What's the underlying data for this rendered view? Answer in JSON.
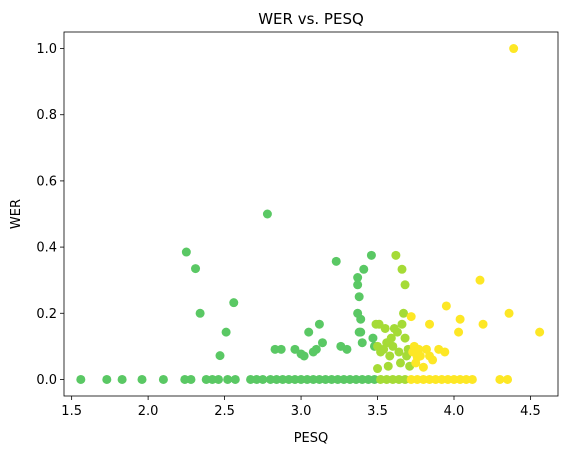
{
  "chart_data": {
    "type": "scatter",
    "title": "WER vs. PESQ",
    "xlabel": "PESQ",
    "ylabel": "WER",
    "xlim": [
      1.45,
      4.68
    ],
    "ylim": [
      -0.05,
      1.05
    ],
    "xticks": [
      1.5,
      2.0,
      2.5,
      3.0,
      3.5,
      4.0,
      4.5
    ],
    "xtick_labels": [
      "1.5",
      "2.0",
      "2.5",
      "3.0",
      "3.5",
      "4.0",
      "4.5"
    ],
    "yticks": [
      0.0,
      0.2,
      0.4,
      0.6,
      0.8,
      1.0
    ],
    "ytick_labels": [
      "0.0",
      "0.2",
      "0.4",
      "0.6",
      "0.8",
      "1.0"
    ],
    "grid": false,
    "colors": {
      "green": "#5ac864",
      "yellowgreen": "#a5db36",
      "yellow": "#fde725"
    },
    "points": [
      {
        "x": 1.56,
        "y": 0.0,
        "c": "green"
      },
      {
        "x": 1.73,
        "y": 0.0,
        "c": "green"
      },
      {
        "x": 1.83,
        "y": 0.0,
        "c": "green"
      },
      {
        "x": 1.96,
        "y": 0.0,
        "c": "green"
      },
      {
        "x": 2.1,
        "y": 0.0,
        "c": "green"
      },
      {
        "x": 2.24,
        "y": 0.0,
        "c": "green"
      },
      {
        "x": 2.28,
        "y": 0.0,
        "c": "green"
      },
      {
        "x": 2.38,
        "y": 0.0,
        "c": "green"
      },
      {
        "x": 2.42,
        "y": 0.0,
        "c": "green"
      },
      {
        "x": 2.46,
        "y": 0.0,
        "c": "green"
      },
      {
        "x": 2.52,
        "y": 0.0,
        "c": "green"
      },
      {
        "x": 2.57,
        "y": 0.0,
        "c": "green"
      },
      {
        "x": 2.67,
        "y": 0.0,
        "c": "green"
      },
      {
        "x": 2.71,
        "y": 0.0,
        "c": "green"
      },
      {
        "x": 2.75,
        "y": 0.0,
        "c": "green"
      },
      {
        "x": 2.8,
        "y": 0.0,
        "c": "green"
      },
      {
        "x": 2.84,
        "y": 0.0,
        "c": "green"
      },
      {
        "x": 2.88,
        "y": 0.0,
        "c": "green"
      },
      {
        "x": 2.92,
        "y": 0.0,
        "c": "green"
      },
      {
        "x": 2.96,
        "y": 0.0,
        "c": "green"
      },
      {
        "x": 3.0,
        "y": 0.0,
        "c": "green"
      },
      {
        "x": 3.04,
        "y": 0.0,
        "c": "green"
      },
      {
        "x": 3.08,
        "y": 0.0,
        "c": "green"
      },
      {
        "x": 3.12,
        "y": 0.0,
        "c": "green"
      },
      {
        "x": 3.16,
        "y": 0.0,
        "c": "green"
      },
      {
        "x": 3.2,
        "y": 0.0,
        "c": "green"
      },
      {
        "x": 3.24,
        "y": 0.0,
        "c": "green"
      },
      {
        "x": 3.28,
        "y": 0.0,
        "c": "green"
      },
      {
        "x": 3.32,
        "y": 0.0,
        "c": "green"
      },
      {
        "x": 3.36,
        "y": 0.0,
        "c": "green"
      },
      {
        "x": 3.4,
        "y": 0.0,
        "c": "green"
      },
      {
        "x": 3.44,
        "y": 0.0,
        "c": "green"
      },
      {
        "x": 3.48,
        "y": 0.0,
        "c": "green"
      },
      {
        "x": 3.52,
        "y": 0.0,
        "c": "yellowgreen"
      },
      {
        "x": 3.56,
        "y": 0.0,
        "c": "yellowgreen"
      },
      {
        "x": 3.6,
        "y": 0.0,
        "c": "yellowgreen"
      },
      {
        "x": 3.64,
        "y": 0.0,
        "c": "yellowgreen"
      },
      {
        "x": 3.68,
        "y": 0.0,
        "c": "yellowgreen"
      },
      {
        "x": 3.72,
        "y": 0.0,
        "c": "yellow"
      },
      {
        "x": 3.76,
        "y": 0.0,
        "c": "yellow"
      },
      {
        "x": 3.8,
        "y": 0.0,
        "c": "yellow"
      },
      {
        "x": 3.84,
        "y": 0.0,
        "c": "yellow"
      },
      {
        "x": 3.88,
        "y": 0.0,
        "c": "yellow"
      },
      {
        "x": 3.92,
        "y": 0.0,
        "c": "yellow"
      },
      {
        "x": 3.96,
        "y": 0.0,
        "c": "yellow"
      },
      {
        "x": 4.0,
        "y": 0.0,
        "c": "yellow"
      },
      {
        "x": 4.04,
        "y": 0.0,
        "c": "yellow"
      },
      {
        "x": 4.08,
        "y": 0.0,
        "c": "yellow"
      },
      {
        "x": 4.12,
        "y": 0.0,
        "c": "yellow"
      },
      {
        "x": 4.3,
        "y": 0.0,
        "c": "yellow"
      },
      {
        "x": 4.35,
        "y": 0.0,
        "c": "yellow"
      },
      {
        "x": 2.25,
        "y": 0.385,
        "c": "green"
      },
      {
        "x": 2.31,
        "y": 0.335,
        "c": "green"
      },
      {
        "x": 2.34,
        "y": 0.2,
        "c": "green"
      },
      {
        "x": 2.47,
        "y": 0.072,
        "c": "green"
      },
      {
        "x": 2.51,
        "y": 0.143,
        "c": "green"
      },
      {
        "x": 2.56,
        "y": 0.232,
        "c": "green"
      },
      {
        "x": 2.78,
        "y": 0.5,
        "c": "green"
      },
      {
        "x": 2.83,
        "y": 0.091,
        "c": "green"
      },
      {
        "x": 2.87,
        "y": 0.091,
        "c": "green"
      },
      {
        "x": 2.96,
        "y": 0.091,
        "c": "green"
      },
      {
        "x": 3.0,
        "y": 0.077,
        "c": "green"
      },
      {
        "x": 3.02,
        "y": 0.071,
        "c": "green"
      },
      {
        "x": 3.05,
        "y": 0.143,
        "c": "green"
      },
      {
        "x": 3.08,
        "y": 0.083,
        "c": "green"
      },
      {
        "x": 3.1,
        "y": 0.091,
        "c": "green"
      },
      {
        "x": 3.12,
        "y": 0.167,
        "c": "green"
      },
      {
        "x": 3.14,
        "y": 0.111,
        "c": "green"
      },
      {
        "x": 3.23,
        "y": 0.357,
        "c": "green"
      },
      {
        "x": 3.26,
        "y": 0.1,
        "c": "green"
      },
      {
        "x": 3.3,
        "y": 0.091,
        "c": "green"
      },
      {
        "x": 3.37,
        "y": 0.308,
        "c": "green"
      },
      {
        "x": 3.37,
        "y": 0.286,
        "c": "green"
      },
      {
        "x": 3.37,
        "y": 0.2,
        "c": "green"
      },
      {
        "x": 3.38,
        "y": 0.25,
        "c": "green"
      },
      {
        "x": 3.38,
        "y": 0.143,
        "c": "green"
      },
      {
        "x": 3.39,
        "y": 0.143,
        "c": "green"
      },
      {
        "x": 3.39,
        "y": 0.182,
        "c": "green"
      },
      {
        "x": 3.4,
        "y": 0.111,
        "c": "green"
      },
      {
        "x": 3.41,
        "y": 0.333,
        "c": "green"
      },
      {
        "x": 3.46,
        "y": 0.375,
        "c": "green"
      },
      {
        "x": 3.47,
        "y": 0.125,
        "c": "green"
      },
      {
        "x": 3.48,
        "y": 0.1,
        "c": "green"
      },
      {
        "x": 3.49,
        "y": 0.167,
        "c": "yellowgreen"
      },
      {
        "x": 3.5,
        "y": 0.1,
        "c": "yellowgreen"
      },
      {
        "x": 3.5,
        "y": 0.033,
        "c": "yellowgreen"
      },
      {
        "x": 3.51,
        "y": 0.167,
        "c": "yellowgreen"
      },
      {
        "x": 3.52,
        "y": 0.083,
        "c": "yellowgreen"
      },
      {
        "x": 3.54,
        "y": 0.091,
        "c": "yellowgreen"
      },
      {
        "x": 3.55,
        "y": 0.154,
        "c": "yellowgreen"
      },
      {
        "x": 3.56,
        "y": 0.111,
        "c": "yellowgreen"
      },
      {
        "x": 3.57,
        "y": 0.04,
        "c": "yellowgreen"
      },
      {
        "x": 3.58,
        "y": 0.071,
        "c": "yellowgreen"
      },
      {
        "x": 3.59,
        "y": 0.125,
        "c": "yellowgreen"
      },
      {
        "x": 3.6,
        "y": 0.1,
        "c": "yellowgreen"
      },
      {
        "x": 3.61,
        "y": 0.154,
        "c": "yellowgreen"
      },
      {
        "x": 3.62,
        "y": 0.375,
        "c": "yellowgreen"
      },
      {
        "x": 3.63,
        "y": 0.143,
        "c": "yellowgreen"
      },
      {
        "x": 3.64,
        "y": 0.083,
        "c": "yellowgreen"
      },
      {
        "x": 3.65,
        "y": 0.05,
        "c": "yellowgreen"
      },
      {
        "x": 3.66,
        "y": 0.167,
        "c": "yellowgreen"
      },
      {
        "x": 3.66,
        "y": 0.333,
        "c": "yellowgreen"
      },
      {
        "x": 3.67,
        "y": 0.2,
        "c": "yellowgreen"
      },
      {
        "x": 3.68,
        "y": 0.286,
        "c": "yellowgreen"
      },
      {
        "x": 3.68,
        "y": 0.125,
        "c": "yellowgreen"
      },
      {
        "x": 3.69,
        "y": 0.071,
        "c": "yellowgreen"
      },
      {
        "x": 3.7,
        "y": 0.091,
        "c": "yellowgreen"
      },
      {
        "x": 3.71,
        "y": 0.04,
        "c": "yellowgreen"
      },
      {
        "x": 3.72,
        "y": 0.19,
        "c": "yellow"
      },
      {
        "x": 3.73,
        "y": 0.083,
        "c": "yellow"
      },
      {
        "x": 3.74,
        "y": 0.1,
        "c": "yellow"
      },
      {
        "x": 3.75,
        "y": 0.05,
        "c": "yellow"
      },
      {
        "x": 3.76,
        "y": 0.067,
        "c": "yellow"
      },
      {
        "x": 3.77,
        "y": 0.091,
        "c": "yellow"
      },
      {
        "x": 3.78,
        "y": 0.071,
        "c": "yellow"
      },
      {
        "x": 3.8,
        "y": 0.037,
        "c": "yellow"
      },
      {
        "x": 3.82,
        "y": 0.091,
        "c": "yellow"
      },
      {
        "x": 3.84,
        "y": 0.167,
        "c": "yellow"
      },
      {
        "x": 3.84,
        "y": 0.071,
        "c": "yellow"
      },
      {
        "x": 3.86,
        "y": 0.059,
        "c": "yellow"
      },
      {
        "x": 3.9,
        "y": 0.091,
        "c": "yellow"
      },
      {
        "x": 3.94,
        "y": 0.083,
        "c": "yellow"
      },
      {
        "x": 3.95,
        "y": 0.222,
        "c": "yellow"
      },
      {
        "x": 4.03,
        "y": 0.143,
        "c": "yellow"
      },
      {
        "x": 4.04,
        "y": 0.182,
        "c": "yellow"
      },
      {
        "x": 4.17,
        "y": 0.3,
        "c": "yellow"
      },
      {
        "x": 4.19,
        "y": 0.167,
        "c": "yellow"
      },
      {
        "x": 4.36,
        "y": 0.2,
        "c": "yellow"
      },
      {
        "x": 4.39,
        "y": 1.0,
        "c": "yellow"
      },
      {
        "x": 4.56,
        "y": 0.143,
        "c": "yellow"
      }
    ]
  }
}
